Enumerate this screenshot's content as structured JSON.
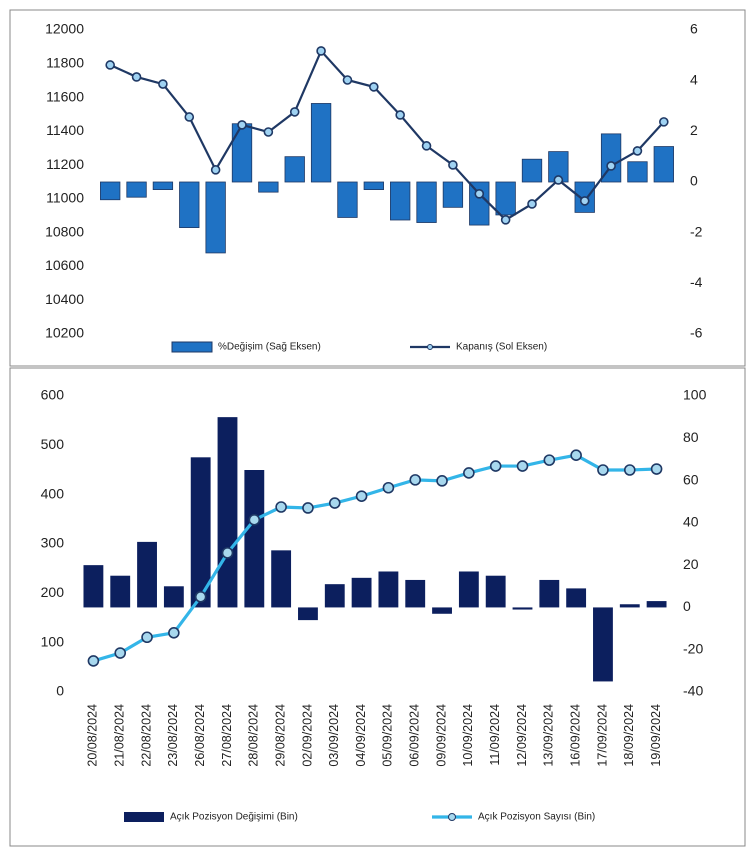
{
  "chart_data": [
    {
      "type": "combo",
      "categories": [
        null,
        null,
        null,
        null,
        null,
        null,
        null,
        null,
        null,
        null,
        null,
        null,
        null,
        null,
        null,
        null,
        null,
        null,
        null,
        null,
        null,
        null
      ],
      "series": [
        {
          "name": "%Değişim (Sağ Eksen)",
          "kind": "bar",
          "axis": "y2",
          "color": "#1f72c4",
          "values": [
            -0.7,
            -0.6,
            -0.3,
            -1.8,
            -2.8,
            2.3,
            -0.4,
            1.0,
            3.1,
            -1.4,
            -0.3,
            -1.5,
            -1.6,
            -1.0,
            -1.7,
            -1.3,
            0.9,
            1.2,
            -1.2,
            1.9,
            0.8,
            1.4
          ]
        },
        {
          "name": "Kapanış (Sol Eksen)",
          "kind": "line",
          "color": "#1f3864",
          "values": [
            11793,
            11722,
            11680,
            11485,
            11172,
            11438,
            11396,
            11515,
            11876,
            11704,
            11663,
            11497,
            11314,
            11201,
            11030,
            10876,
            10970,
            11112,
            10988,
            11195,
            11284,
            11456
          ]
        }
      ],
      "ylim": [
        10200,
        12000
      ],
      "yticks": [
        10200,
        10400,
        10600,
        10800,
        11000,
        11200,
        11400,
        11600,
        11800,
        12000
      ],
      "y2lim": [
        -6,
        6
      ],
      "y2ticks": [
        -6,
        -4,
        -2,
        0,
        2,
        4,
        6
      ]
    },
    {
      "type": "combo",
      "categories": [
        "20/08/2024",
        "21/08/2024",
        "22/08/2024",
        "23/08/2024",
        "26/08/2024",
        "27/08/2024",
        "28/08/2024",
        "29/08/2024",
        "02/09/2024",
        "03/09/2024",
        "04/09/2024",
        "05/09/2024",
        "06/09/2024",
        "09/09/2024",
        "10/09/2024",
        "11/09/2024",
        "12/09/2024",
        "13/09/2024",
        "16/09/2024",
        "17/09/2024",
        "18/09/2024",
        "19/09/2024"
      ],
      "series": [
        {
          "name": "Açık Pozisyon Değişimi (Bin)",
          "kind": "bar",
          "axis": "y2",
          "color": "#0c1f5e",
          "values": [
            20,
            15,
            31,
            10,
            71,
            90,
            65,
            27,
            -6,
            11,
            14,
            17,
            13,
            -3,
            17,
            15,
            -1,
            13,
            9,
            -35,
            1.5,
            3
          ]
        },
        {
          "name": "Açık Pozisyon Sayısı (Bin)",
          "kind": "line",
          "color": "#33b5e8",
          "values": [
            63,
            79,
            111,
            120,
            193,
            282,
            349,
            375,
            373,
            383,
            397,
            414,
            430,
            428,
            444,
            458,
            458,
            470,
            480,
            450,
            450,
            452
          ]
        }
      ],
      "ylim": [
        0,
        600
      ],
      "yticks": [
        0,
        100,
        200,
        300,
        400,
        500,
        600
      ],
      "y2lim": [
        -40,
        100
      ],
      "y2ticks": [
        -40,
        -20,
        0,
        20,
        40,
        60,
        80,
        100
      ]
    }
  ]
}
